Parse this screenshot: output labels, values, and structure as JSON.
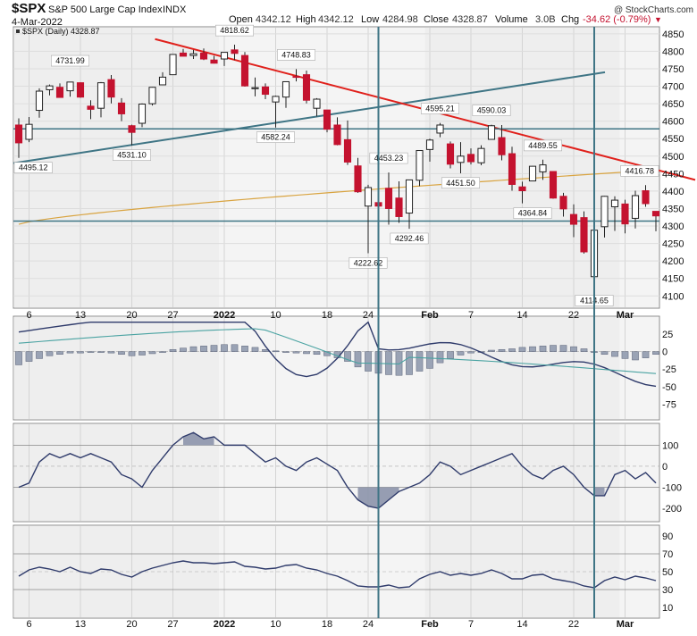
{
  "header": {
    "symbol": "$SPX",
    "name": "S&P 500 Large Cap Index",
    "exchange": "INDX",
    "date": "4-Mar-2022",
    "copyright": "@ StockCharts.com",
    "open_label": "Open",
    "open": "4342.12",
    "high_label": "High",
    "high": "4342.12",
    "low_label": "Low",
    "low": "4284.98",
    "close_label": "Close",
    "close": "4328.87",
    "volume_label": "Volume",
    "volume": "3.0B",
    "chg_label": "Chg",
    "chg": "-34.62 (-0.79%)",
    "chg_arrow": "▼",
    "legend": "$SPX (Daily) 4328.87"
  },
  "chart_data": {
    "type": "candlestick",
    "dates": [
      "Dec 3",
      "Dec 6",
      "Dec 7",
      "Dec 8",
      "Dec 9",
      "Dec 10",
      "Dec 13",
      "Dec 14",
      "Dec 15",
      "Dec 16",
      "Dec 17",
      "Dec 20",
      "Dec 21",
      "Dec 22",
      "Dec 23",
      "Dec 27",
      "Dec 28",
      "Dec 29",
      "Dec 30",
      "Dec 31",
      "Jan 3",
      "Jan 4",
      "Jan 5",
      "Jan 6",
      "Jan 7",
      "Jan 10",
      "Jan 11",
      "Jan 12",
      "Jan 13",
      "Jan 14",
      "Jan 18",
      "Jan 19",
      "Jan 20",
      "Jan 21",
      "Jan 24",
      "Jan 25",
      "Jan 26",
      "Jan 27",
      "Jan 28",
      "Jan 31",
      "Feb 1",
      "Feb 2",
      "Feb 3",
      "Feb 4",
      "Feb 7",
      "Feb 8",
      "Feb 9",
      "Feb 10",
      "Feb 11",
      "Feb 14",
      "Feb 15",
      "Feb 16",
      "Feb 17",
      "Feb 18",
      "Feb 22",
      "Feb 23",
      "Feb 24",
      "Feb 25",
      "Feb 28",
      "Mar 1",
      "Mar 2",
      "Mar 3",
      "Mar 4"
    ],
    "ohlc": [
      [
        4589,
        4608,
        4495,
        4538
      ],
      [
        4548,
        4612,
        4540,
        4591
      ],
      [
        4631,
        4694,
        4610,
        4686
      ],
      [
        4690,
        4705,
        4674,
        4701
      ],
      [
        4697,
        4708,
        4667,
        4668
      ],
      [
        4687,
        4713,
        4670,
        4712
      ],
      [
        4710,
        4711,
        4667,
        4669
      ],
      [
        4643,
        4660,
        4606,
        4634
      ],
      [
        4637,
        4712,
        4611,
        4710
      ],
      [
        4719,
        4732,
        4651,
        4669
      ],
      [
        4652,
        4666,
        4600,
        4621
      ],
      [
        4587,
        4590,
        4531,
        4568
      ],
      [
        4594,
        4651,
        4583,
        4649
      ],
      [
        4650,
        4698,
        4645,
        4697
      ],
      [
        4704,
        4740,
        4703,
        4726
      ],
      [
        4733,
        4792,
        4733,
        4791
      ],
      [
        4795,
        4807,
        4787,
        4786
      ],
      [
        4788,
        4804,
        4778,
        4793
      ],
      [
        4795,
        4808,
        4775,
        4778
      ],
      [
        4775,
        4787,
        4765,
        4766
      ],
      [
        4778,
        4797,
        4758,
        4797
      ],
      [
        4804,
        4819,
        4775,
        4794
      ],
      [
        4788,
        4798,
        4699,
        4701
      ],
      [
        4693,
        4725,
        4671,
        4696
      ],
      [
        4698,
        4708,
        4663,
        4677
      ],
      [
        4655,
        4673,
        4582,
        4671
      ],
      [
        4669,
        4714,
        4638,
        4713
      ],
      [
        4728,
        4749,
        4714,
        4726
      ],
      [
        4733,
        4745,
        4651,
        4660
      ],
      [
        4637,
        4666,
        4614,
        4663
      ],
      [
        4632,
        4632,
        4568,
        4577
      ],
      [
        4589,
        4611,
        4531,
        4533
      ],
      [
        4547,
        4602,
        4475,
        4483
      ],
      [
        4472,
        4495,
        4395,
        4398
      ],
      [
        4357,
        4418,
        4222,
        4410
      ],
      [
        4367,
        4411,
        4334,
        4357
      ],
      [
        4408,
        4453,
        4304,
        4350
      ],
      [
        4380,
        4428,
        4309,
        4327
      ],
      [
        4337,
        4432,
        4292,
        4432
      ],
      [
        4431,
        4516,
        4414,
        4516
      ],
      [
        4519,
        4550,
        4484,
        4546
      ],
      [
        4566,
        4595,
        4554,
        4589
      ],
      [
        4535,
        4542,
        4465,
        4477
      ],
      [
        4482,
        4540,
        4451,
        4500
      ],
      [
        4505,
        4522,
        4476,
        4484
      ],
      [
        4481,
        4531,
        4474,
        4522
      ],
      [
        4548,
        4590,
        4548,
        4587
      ],
      [
        4553,
        4589,
        4488,
        4504
      ],
      [
        4507,
        4527,
        4401,
        4419
      ],
      [
        4412,
        4427,
        4365,
        4401
      ],
      [
        4429,
        4472,
        4429,
        4471
      ],
      [
        4455,
        4490,
        4432,
        4475
      ],
      [
        4456,
        4456,
        4378,
        4380
      ],
      [
        4385,
        4395,
        4327,
        4349
      ],
      [
        4333,
        4362,
        4268,
        4305
      ],
      [
        4324,
        4342,
        4221,
        4226
      ],
      [
        4155,
        4295,
        4115,
        4288
      ],
      [
        4298,
        4386,
        4267,
        4385
      ],
      [
        4355,
        4385,
        4286,
        4374
      ],
      [
        4363,
        4375,
        4279,
        4306
      ],
      [
        4322,
        4401,
        4293,
        4387
      ],
      [
        4401,
        4417,
        4355,
        4364
      ],
      [
        4342,
        4342,
        4285,
        4329
      ]
    ],
    "y_axis_ticks": [
      "4850",
      "4800",
      "4750",
      "4700",
      "4650",
      "4600",
      "4550",
      "4500",
      "4450",
      "4400",
      "4350",
      "4300",
      "4250",
      "4200",
      "4150",
      "4100"
    ],
    "ylim": [
      4070,
      4865
    ],
    "x_axis_labels": [
      "6",
      "13",
      "20",
      "27",
      "2022",
      "10",
      "18",
      "24",
      "Feb",
      "7",
      "14",
      "22",
      "Mar"
    ],
    "annotations": [
      "4818.62",
      "4731.99",
      "4748.83",
      "4582.24",
      "4531.10",
      "4495.12",
      "4595.21",
      "4590.03",
      "4453.23",
      "4489.55",
      "4451.50",
      "4364.84",
      "4292.46",
      "4222.62",
      "4416.78",
      "4114.65"
    ],
    "moving_average": "orange, rising from about 4305 to 4460",
    "trendlines": [
      "red descending resistance from about 4840 to 4430",
      "steel-blue rising line from about 4480 to 4740",
      "horizontal at 4578",
      "horizontal at 4314"
    ],
    "indicator_panels": [
      {
        "ticks": [
          "25",
          "0",
          "-25",
          "-50",
          "-75"
        ],
        "ylim": [
          -95,
          48
        ],
        "style": "histogram with two oscillating lines"
      },
      {
        "ticks": [
          "100",
          "0",
          "-100",
          "-200"
        ],
        "ylim": [
          -255,
          195
        ],
        "style": "oscillator with shaded extremes"
      },
      {
        "ticks": [
          "90",
          "70",
          "50",
          "30",
          "10"
        ],
        "ylim": [
          0,
          100
        ],
        "style": "oscillator between 30 and 70"
      }
    ]
  }
}
